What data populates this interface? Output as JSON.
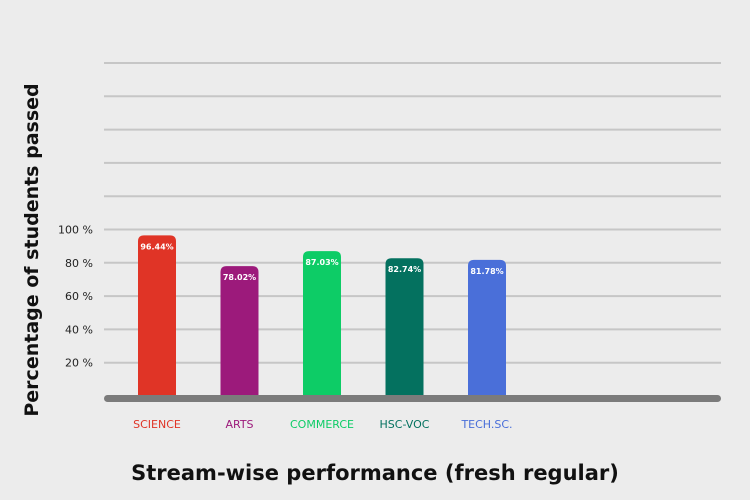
{
  "chart_data": {
    "type": "bar",
    "title": "",
    "xlabel": "Stream-wise performance (fresh regular)",
    "ylabel": "Percentage of students passed",
    "categories": [
      "SCIENCE",
      "ARTS",
      "COMMERCE",
      "HSC-VOC",
      "TECH.SC."
    ],
    "values": [
      96.44,
      78.02,
      87.03,
      82.74,
      81.78
    ],
    "value_labels": [
      "96.44%",
      "78.02%",
      "87.03%",
      "82.74%",
      "81.78%"
    ],
    "bar_colors": [
      "#e03426",
      "#9c1a7b",
      "#0dcc66",
      "#04715f",
      "#4a6fd9"
    ],
    "yticks": [
      20,
      40,
      60,
      80,
      100
    ],
    "ytick_labels": [
      "20 %",
      "40 %",
      "60 %",
      "80 %",
      "100 %"
    ],
    "ylim": [
      0,
      200
    ],
    "grid": true
  }
}
